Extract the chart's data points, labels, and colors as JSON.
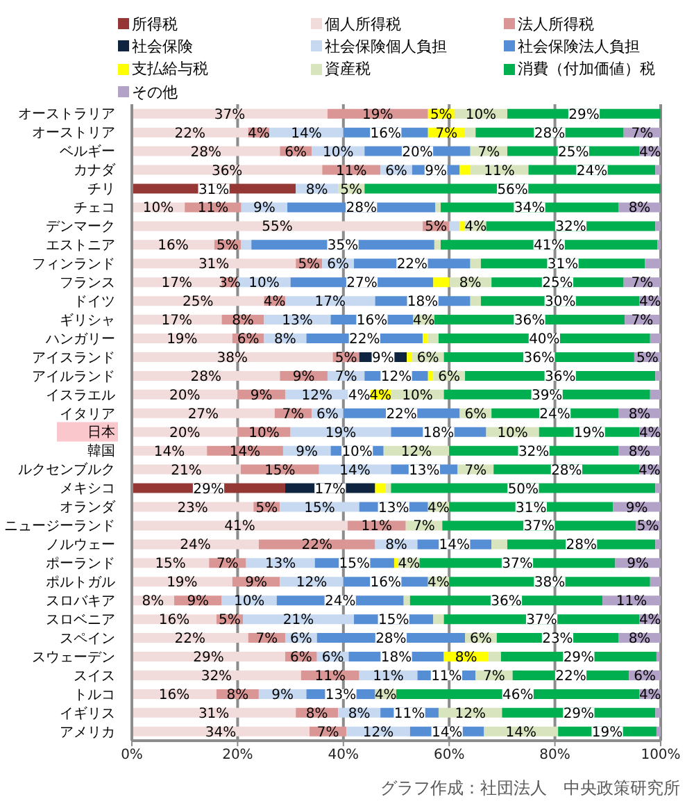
{
  "chart_data": {
    "type": "bar",
    "orientation": "horizontal",
    "stacked": true,
    "categories": [
      "オーストラリア",
      "オーストリア",
      "ベルギー",
      "カナダ",
      "チリ",
      "チェコ",
      "デンマーク",
      "エストニア",
      "フィンランド",
      "フランス",
      "ドイツ",
      "ギリシャ",
      "ハンガリー",
      "アイスランド",
      "アイルランド",
      "イスラエル",
      "イタリア",
      "日本",
      "韓国",
      "ルクセンブルク",
      "メキシコ",
      "オランダ",
      "ニュージーランド",
      "ノルウェー",
      "ポーランド",
      "ポルトガル",
      "スロバキア",
      "スロベニア",
      "スペイン",
      "スウェーデン",
      "スイス",
      "トルコ",
      "イギリス",
      "アメリカ"
    ],
    "series": [
      {
        "name": "所得税",
        "color": "#953735",
        "values": [
          null,
          null,
          null,
          null,
          31,
          null,
          null,
          null,
          null,
          null,
          null,
          null,
          null,
          null,
          null,
          null,
          null,
          null,
          null,
          null,
          29,
          null,
          null,
          null,
          null,
          null,
          null,
          null,
          null,
          null,
          null,
          null,
          null,
          null
        ],
        "value_labels": [
          null,
          null,
          null,
          null,
          "31%",
          null,
          null,
          null,
          null,
          null,
          null,
          null,
          null,
          null,
          null,
          null,
          null,
          null,
          null,
          null,
          "29%",
          null,
          null,
          null,
          null,
          null,
          null,
          null,
          null,
          null,
          null,
          null,
          null,
          null
        ]
      },
      {
        "name": "個人所得税",
        "color": "#f2dcdb",
        "values": [
          37,
          22,
          28,
          36,
          null,
          10,
          55,
          15.6,
          31,
          17,
          25,
          17,
          19,
          38,
          28,
          20,
          27,
          20,
          14.2,
          20.6,
          null,
          23,
          40.8,
          24,
          14.6,
          19,
          8,
          16,
          22,
          29,
          32,
          16,
          31,
          33.6
        ],
        "value_labels": [
          "37%",
          "22%",
          "28%",
          "36%",
          null,
          "10%",
          "55%",
          "16%",
          "31%",
          "17%",
          "25%",
          "17%",
          "19%",
          "38%",
          "28%",
          "20%",
          "27%",
          "20%",
          "14%",
          "21%",
          null,
          "23%",
          "41%",
          "24%",
          "15%",
          "19%",
          "8%",
          "16%",
          "22%",
          "29%",
          "32%",
          "16%",
          "31%",
          "34%"
        ]
      },
      {
        "name": "法人所得税",
        "color": "#d99694",
        "values": [
          19,
          4,
          6,
          11,
          null,
          10.7,
          5,
          5,
          5,
          3,
          4,
          8,
          6,
          5,
          9,
          9,
          7,
          10,
          14.4,
          14.8,
          null,
          5,
          11,
          22,
          7,
          9,
          9,
          5,
          7,
          6,
          11,
          8,
          8,
          7
        ],
        "value_labels": [
          "19%",
          "4%",
          "6%",
          "11%",
          null,
          "11%",
          "5%",
          "5%",
          "5%",
          "3%",
          "4%",
          "8%",
          "6%",
          "5%",
          "9%",
          "9%",
          "7%",
          "10%",
          "14%",
          "15%",
          null,
          "5%",
          "11%",
          "22%",
          "7%",
          "9%",
          "9%",
          "5%",
          "7%",
          "6%",
          "11%",
          "8%",
          "8%",
          "7%"
        ]
      },
      {
        "name": "社会保険",
        "color": "#0f243e",
        "values": [
          null,
          null,
          null,
          null,
          null,
          null,
          null,
          null,
          null,
          null,
          null,
          null,
          null,
          9,
          null,
          null,
          null,
          null,
          null,
          null,
          17,
          null,
          null,
          null,
          null,
          null,
          null,
          null,
          null,
          null,
          null,
          null,
          null,
          null
        ],
        "value_labels": [
          null,
          null,
          null,
          null,
          null,
          null,
          null,
          null,
          null,
          null,
          null,
          null,
          null,
          "9%",
          null,
          null,
          null,
          null,
          null,
          null,
          "17%",
          null,
          null,
          null,
          null,
          null,
          null,
          null,
          null,
          null,
          null,
          null,
          null,
          null
        ]
      },
      {
        "name": "社会保険個人負担",
        "color": "#c6d9f1",
        "values": [
          null,
          14,
          10,
          6,
          8,
          8.7,
          2,
          2,
          6,
          10,
          17,
          12.6,
          8,
          null,
          7,
          12,
          6,
          19,
          9,
          13.6,
          null,
          15,
          null,
          8,
          13,
          12,
          10.4,
          21,
          6,
          6,
          11,
          9,
          8,
          12
        ],
        "value_labels": [
          null,
          "14%",
          "10%",
          "6%",
          "8%",
          "9%",
          null,
          null,
          "6%",
          "10%",
          "17%",
          "13%",
          "8%",
          null,
          "7%",
          "12%",
          "6%",
          "19%",
          "9%",
          "14%",
          null,
          "15%",
          null,
          "8%",
          "13%",
          "12%",
          "10%",
          "21%",
          "6%",
          "6%",
          "11%",
          "9%",
          "8%",
          "12%"
        ]
      },
      {
        "name": "社会保険法人負担",
        "color": "#558ed5",
        "values": [
          null,
          16,
          20,
          9,
          null,
          28,
          null,
          34.6,
          22,
          27,
          18,
          15.6,
          22,
          null,
          12,
          4,
          22,
          18,
          10,
          12.6,
          null,
          13,
          null,
          14,
          15,
          16,
          24,
          15,
          28,
          18,
          11,
          13,
          11,
          14
        ],
        "value_labels": [
          null,
          "16%",
          "20%",
          "9%",
          null,
          "28%",
          null,
          "35%",
          "22%",
          "27%",
          "18%",
          "16%",
          "22%",
          null,
          "12%",
          "4%",
          "22%",
          "18%",
          "10%",
          "13%",
          null,
          "13%",
          null,
          "14%",
          "15%",
          "16%",
          "24%",
          "15%",
          "28%",
          "18%",
          "11%",
          "13%",
          "11%",
          "14%"
        ]
      },
      {
        "name": "支払給与税",
        "color": "#ffff00",
        "values": [
          5,
          7,
          null,
          2,
          null,
          null,
          1,
          null,
          null,
          3,
          null,
          null,
          1,
          1,
          1,
          4,
          null,
          null,
          null,
          null,
          2,
          null,
          null,
          null,
          0.8,
          null,
          null,
          null,
          null,
          8.4,
          null,
          null,
          null,
          null
        ],
        "value_labels": [
          "5%",
          "7%",
          null,
          null,
          null,
          null,
          null,
          null,
          null,
          null,
          null,
          null,
          null,
          null,
          null,
          "4%",
          null,
          null,
          null,
          null,
          null,
          null,
          null,
          null,
          null,
          null,
          null,
          null,
          null,
          "8%",
          null,
          null,
          null,
          null
        ]
      },
      {
        "name": "資産税",
        "color": "#d7e4bd",
        "values": [
          10,
          2,
          7,
          11,
          5,
          1,
          4,
          1.2,
          2,
          8,
          2,
          4,
          2,
          6,
          6,
          10,
          6,
          10,
          12.4,
          6.8,
          1,
          4,
          6.9,
          3,
          4,
          4,
          1.2,
          2,
          6,
          2.4,
          7,
          4,
          12,
          14
        ],
        "value_labels": [
          "10%",
          null,
          "7%",
          "11%",
          "5%",
          null,
          "4%",
          null,
          null,
          "8%",
          null,
          "4%",
          null,
          "6%",
          "6%",
          "10%",
          "6%",
          "10%",
          "12%",
          "7%",
          null,
          "4%",
          "7%",
          null,
          "4%",
          "4%",
          null,
          null,
          "6%",
          null,
          "7%",
          "4%",
          "12%",
          "14%"
        ]
      },
      {
        "name": "消費（付加価値）税",
        "color": "#00b050",
        "values": [
          29,
          28,
          25,
          24,
          56,
          33.6,
          32,
          41,
          31,
          25,
          30,
          36,
          40,
          36,
          36,
          39,
          24,
          19,
          32,
          27.6,
          50,
          31,
          36.6,
          28,
          37,
          38,
          36.4,
          37,
          23,
          29.4,
          22,
          46,
          29,
          18.6
        ],
        "value_labels": [
          "29%",
          "28%",
          "25%",
          "24%",
          "56%",
          "34%",
          "32%",
          "41%",
          "31%",
          "25%",
          "30%",
          "36%",
          "40%",
          "36%",
          "36%",
          "39%",
          "24%",
          "19%",
          "32%",
          "28%",
          "50%",
          "31%",
          "37%",
          "28%",
          "37%",
          "38%",
          "36%",
          "37%",
          "23%",
          "29%",
          "22%",
          "46%",
          "29%",
          "19%"
        ]
      },
      {
        "name": "その他",
        "color": "#b3a2c7",
        "values": [
          null,
          7,
          4,
          1,
          null,
          8,
          1,
          0.6,
          3,
          7,
          4,
          6.6,
          2,
          5,
          1,
          2,
          8,
          4,
          8,
          3.8,
          1,
          9,
          4.6,
          1,
          8.6,
          2,
          11,
          4,
          8,
          0.6,
          6,
          4,
          1,
          0.8
        ],
        "value_labels": [
          null,
          "7%",
          "4%",
          null,
          null,
          "8%",
          null,
          null,
          null,
          "7%",
          "4%",
          "7%",
          null,
          "5%",
          null,
          null,
          "8%",
          "4%",
          "8%",
          "4%",
          null,
          "9%",
          "5%",
          null,
          "9%",
          null,
          "11%",
          "4%",
          "8%",
          null,
          "6%",
          "4%",
          null,
          null
        ]
      }
    ],
    "xlim": [
      0,
      100
    ],
    "xticks": [
      {
        "value": 0,
        "label": "0%"
      },
      {
        "value": 20,
        "label": "20%"
      },
      {
        "value": 40,
        "label": "40%"
      },
      {
        "value": 60,
        "label": "60%"
      },
      {
        "value": 80,
        "label": "80%"
      },
      {
        "value": 100,
        "label": "100%"
      }
    ],
    "grid": "x",
    "legend": "top",
    "annotations": [
      "グラフ作成：社団法人　中央政策研究所"
    ]
  }
}
